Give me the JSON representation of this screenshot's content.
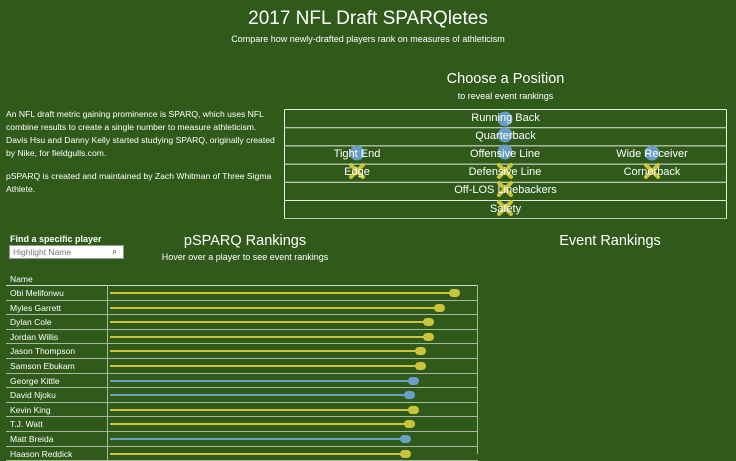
{
  "header": {
    "title": "2017 NFL Draft SPARQletes",
    "subtitle": "Compare how newly-drafted players rank on measures of athleticism"
  },
  "intro": {
    "paragraph1": "An NFL draft metric gaining prominence is SPARQ, which uses NFL combine results to create a single number to measure athleticism. Davis Hsu and Danny Kelly started studying SPARQ, originally created by Nike, for fieldgulls.com.",
    "paragraph2": "pSPARQ is created and maintained by Zach Whitman of Three Sigma Athlete."
  },
  "position_selector": {
    "title": "Choose a Position",
    "subtitle": "to reveal event rankings",
    "rows": [
      [
        "Running Back"
      ],
      [
        "Quarterback"
      ],
      [
        "Tight End",
        "Offensive Line",
        "Wide Receiver"
      ],
      [
        "Edge",
        "Defensive Line",
        "Cornerback"
      ],
      [
        "Off-LOS Linebackers"
      ],
      [
        "Safety"
      ]
    ]
  },
  "search": {
    "label": "Find a specific player",
    "placeholder": "Highlight Name",
    "icon": "search-icon"
  },
  "rankings": {
    "title": "pSPARQ Rankings",
    "subtitle": "Hover over a player to see event rankings",
    "column_header": "Name",
    "players": [
      {
        "name": "Obi Melifonwu",
        "score": 0.92,
        "color": "#c9c43a"
      },
      {
        "name": "Myles Garrett",
        "score": 0.88,
        "color": "#c9c43a"
      },
      {
        "name": "Dylan Cole",
        "score": 0.85,
        "color": "#c9c43a"
      },
      {
        "name": "Jordan Willis",
        "score": 0.85,
        "color": "#c9c43a"
      },
      {
        "name": "Jason Thompson",
        "score": 0.83,
        "color": "#c9c43a"
      },
      {
        "name": "Samson Ebukam",
        "score": 0.83,
        "color": "#c9c43a"
      },
      {
        "name": "George Kittle",
        "score": 0.81,
        "color": "#6a9fc8"
      },
      {
        "name": "David Njoku",
        "score": 0.8,
        "color": "#6a9fc8"
      },
      {
        "name": "Kevin King",
        "score": 0.81,
        "color": "#c9c43a"
      },
      {
        "name": "T.J. Watt",
        "score": 0.8,
        "color": "#c9c43a"
      },
      {
        "name": "Matt Breida",
        "score": 0.79,
        "color": "#6a9fc8"
      },
      {
        "name": "Haason Reddick",
        "score": 0.79,
        "color": "#c9c43a"
      }
    ]
  },
  "events": {
    "title": "Event Rankings"
  },
  "colors": {
    "background": "#2f5a1a",
    "offense": "#6a9fc8",
    "defense": "#c9c43a"
  }
}
